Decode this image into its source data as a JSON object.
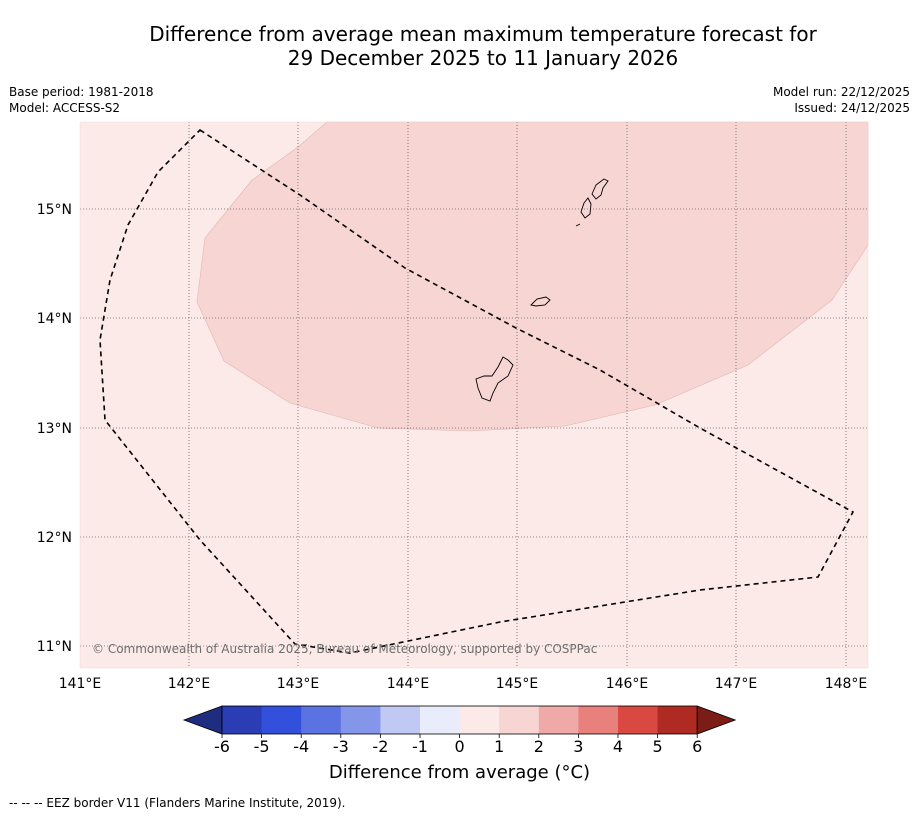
{
  "title_line1": "Difference from average mean maximum temperature forecast for",
  "title_line2": "29 December 2025 to 11 January 2026",
  "base_period": "Base period: 1981-2018",
  "model": "Model: ACCESS-S2",
  "model_run": "Model run: 22/12/2025",
  "issued": "Issued: 24/12/2025",
  "copyright": "© Commonwealth of Australia 2025, Bureau of Meteorology, supported by COSPPac",
  "footnote": "-- -- -- EEZ border V11 (Flanders Marine Institute, 2019).",
  "colorbar": {
    "title": "Difference from average (°C)",
    "ticks": [
      "-6",
      "-5",
      "-4",
      "-3",
      "-2",
      "-1",
      "0",
      "1",
      "2",
      "3",
      "4",
      "5",
      "6"
    ],
    "colors": [
      "#1f2d80",
      "#2a3db5",
      "#3350dd",
      "#5b72e3",
      "#8496ea",
      "#c0c8f4",
      "#e8ecfb",
      "#fbeae8",
      "#f6d5d3",
      "#efaaa7",
      "#e8807c",
      "#d94841",
      "#ae2a22",
      "#7c1c17"
    ]
  },
  "map": {
    "lon_labels": [
      "141°E",
      "142°E",
      "143°E",
      "144°E",
      "145°E",
      "146°E",
      "147°E",
      "148°E"
    ],
    "lat_labels": [
      "15°N",
      "14°N",
      "13°N",
      "12°N",
      "11°N"
    ],
    "background_category": "0 to 1",
    "background_color": "#fbeae8",
    "anomaly_region_category": "1 to 2",
    "anomaly_region_color": "#f6d5d3"
  }
}
